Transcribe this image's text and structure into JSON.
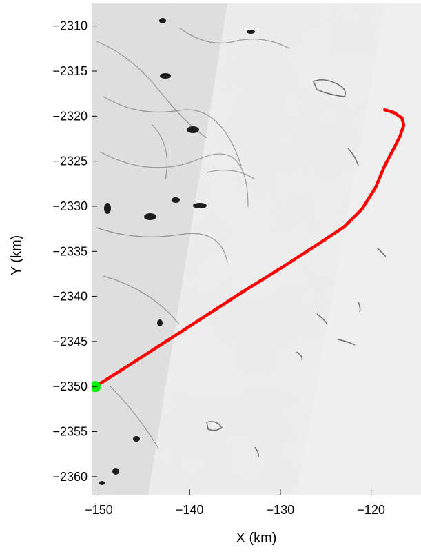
{
  "chart_data": {
    "type": "line",
    "title": "",
    "xlabel": "X (km)",
    "ylabel": "Y (km)",
    "xlim": [
      -150.8,
      -114.5
    ],
    "ylim": [
      -2362.0,
      -2307.5
    ],
    "x_ticks": [
      -150,
      -140,
      -130,
      -120
    ],
    "x_tick_labels": [
      "−150",
      "−140",
      "−130",
      "−120"
    ],
    "y_ticks": [
      -2310,
      -2315,
      -2320,
      -2325,
      -2330,
      -2335,
      -2340,
      -2345,
      -2350,
      -2355,
      -2360
    ],
    "y_tick_labels": [
      "−2310",
      "−2315",
      "−2320",
      "−2325",
      "−2330",
      "−2335",
      "−2340",
      "−2345",
      "−2350",
      "−2355",
      "−2360"
    ],
    "grid": false,
    "background": "grayscale satellite image of sea ice",
    "series": [
      {
        "color": "#ff0000",
        "x": [
          -150.4,
          -146,
          -142,
          -138,
          -134,
          -130,
          -126,
          -123,
          -121,
          -119.5,
          -118.5,
          -117.5,
          -116.8,
          -116.4,
          -116.6,
          -117.5,
          -118.5
        ],
        "y": [
          -2350.0,
          -2347.2,
          -2344.6,
          -2342.0,
          -2339.4,
          -2336.9,
          -2334.3,
          -2332.3,
          -2330.3,
          -2327.9,
          -2325.5,
          -2323.6,
          -2322.2,
          -2321.0,
          -2320.2,
          -2319.6,
          -2319.3
        ]
      }
    ],
    "points": [
      {
        "color": "#00ee00",
        "x": -150.4,
        "y": -2350.0
      }
    ]
  }
}
